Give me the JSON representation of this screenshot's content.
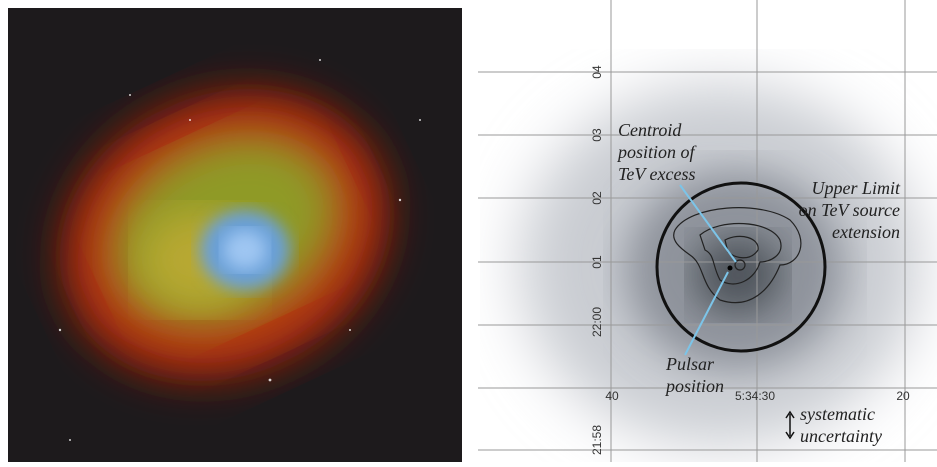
{
  "map": {
    "y_labels": [
      "04",
      "03",
      "02",
      "01",
      "22:00",
      "21:58"
    ],
    "x_labels": [
      "40",
      "5:34:30",
      "20"
    ],
    "annotations": {
      "centroid": [
        "Centroid",
        "position of",
        "TeV excess"
      ],
      "upper_limit": [
        "Upper Limit",
        "on TeV source",
        "extension"
      ],
      "pulsar": [
        "Pulsar",
        "position"
      ],
      "systematic": [
        "systematic",
        "uncertainty"
      ]
    }
  }
}
